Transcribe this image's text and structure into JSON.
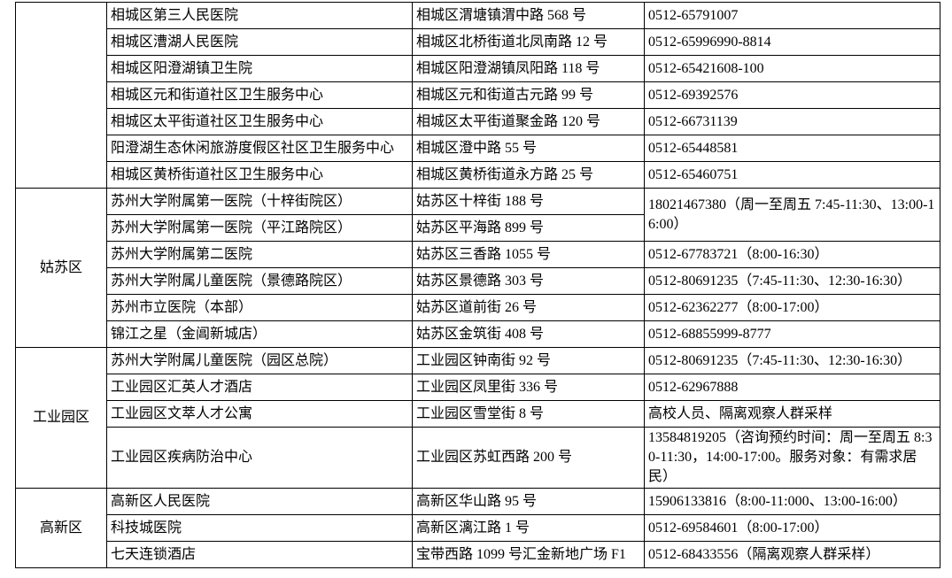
{
  "page": {
    "background_color": "#ffffff",
    "text_color": "#000000",
    "border_color": "#000000"
  },
  "table": {
    "columns": [
      "district",
      "facility_name",
      "address",
      "phone"
    ],
    "sections": [
      {
        "district": "",
        "rows": [
          {
            "name": "相城区第三人民医院",
            "address": "相城区渭塘镇渭中路 568 号",
            "phone": "0512-65791007"
          },
          {
            "name": "相城区漕湖人民医院",
            "address": "相城区北桥街道北凤南路 12 号",
            "phone": "0512-65996990-8814"
          },
          {
            "name": "相城区阳澄湖镇卫生院",
            "address": "相城区阳澄湖镇凤阳路 118 号",
            "phone": "0512-65421608-100"
          },
          {
            "name": "相城区元和街道社区卫生服务中心",
            "address": "相城区元和街道古元路 99 号",
            "phone": "0512-69392576"
          },
          {
            "name": "相城区太平街道社区卫生服务中心",
            "address": "相城区太平街道聚金路 120 号",
            "phone": "0512-66731139"
          },
          {
            "name": "阳澄湖生态休闲旅游度假区社区卫生服务中心",
            "address": "相城区澄中路 55 号",
            "phone": "0512-65448581"
          },
          {
            "name": "相城区黄桥街道社区卫生服务中心",
            "address": "相城区黄桥街道永方路 25 号",
            "phone": "0512-65460751"
          }
        ]
      },
      {
        "district": "姑苏区",
        "rows": [
          {
            "name": "苏州大学附属第一医院（十梓街院区）",
            "address": "姑苏区十梓街 188 号",
            "phone": "18021467380（周一至周五 7:45-11:30、13:00-16:00）",
            "phone_rowspan": 2
          },
          {
            "name": "苏州大学附属第一医院（平江路院区）",
            "address": "姑苏区平海路 899 号",
            "phone": null
          },
          {
            "name": "苏州大学附属第二医院",
            "address": "姑苏区三香路 1055 号",
            "phone": "0512-67783721（8:00-16:30）"
          },
          {
            "name": "苏州大学附属儿童医院（景德路院区）",
            "address": "姑苏区景德路 303 号",
            "phone": "0512-80691235（7:45-11:30、12:30-16:30）"
          },
          {
            "name": "苏州市立医院（本部）",
            "address": "姑苏区道前街 26 号",
            "phone": "0512-62362277（8:00-17:00）"
          },
          {
            "name": "锦江之星（金阊新城店）",
            "address": "姑苏区金筑街 408 号",
            "phone": "0512-68855999-8777"
          }
        ]
      },
      {
        "district": "工业园区",
        "rows": [
          {
            "name": "苏州大学附属儿童医院（园区总院）",
            "address": "工业园区钟南街 92 号",
            "phone": "0512-80691235（7:45-11:30、12:30-16:30）"
          },
          {
            "name": "工业园区汇英人才酒店",
            "address": "工业园区凤里街 336 号",
            "phone": "0512-62967888"
          },
          {
            "name": "工业园区文萃人才公寓",
            "address": "工业园区雪堂街 8 号",
            "phone": "高校人员、隔离观察人群采样"
          },
          {
            "name": "工业园区疾病防治中心",
            "address": "工业园区苏虹西路 200 号",
            "phone": "13584819205（咨询预约时间：周一至周五 8:30-11:30，14:00-17:00。服务对象：有需求居民）"
          }
        ]
      },
      {
        "district": "高新区",
        "rows": [
          {
            "name": "高新区人民医院",
            "address": "高新区华山路 95 号",
            "phone": "15906133816（8:00-11:000、13:00-16:00）"
          },
          {
            "name": "科技城医院",
            "address": "高新区漓江路 1 号",
            "phone": "0512-69584601（8:00-17:00）"
          },
          {
            "name": "七天连锁酒店",
            "address": "宝带西路 1099 号汇金新地广场 F1",
            "phone": "0512-68433556（隔离观察人群采样）"
          }
        ]
      }
    ]
  }
}
